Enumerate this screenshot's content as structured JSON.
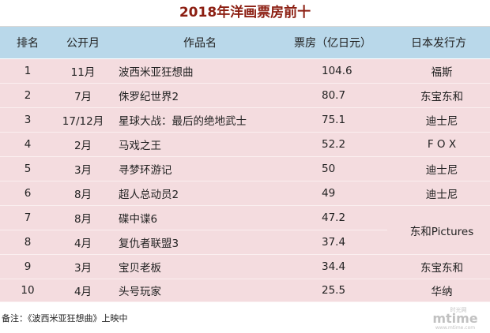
{
  "title": "2018年洋画票房前十",
  "columns": {
    "rank": "排名",
    "month": "公开月",
    "title": "作品名",
    "gross": "票房（亿日元）",
    "distributor": "日本发行方"
  },
  "rows": [
    {
      "rank": "1",
      "month": "11月",
      "title": "波西米亚狂想曲",
      "gross": "104.6",
      "distributor": "福斯"
    },
    {
      "rank": "2",
      "month": "7月",
      "title": "侏罗纪世界2",
      "gross": "80.7",
      "distributor": "东宝东和"
    },
    {
      "rank": "3",
      "month": "17/12月",
      "title": "星球大战：最后的绝地武士",
      "gross": "75.1",
      "distributor": "迪士尼"
    },
    {
      "rank": "4",
      "month": "2月",
      "title": "马戏之王",
      "gross": "52.2",
      "distributor": "F O X"
    },
    {
      "rank": "5",
      "month": "3月",
      "title": "寻梦环游记",
      "gross": "50",
      "distributor": "迪士尼"
    },
    {
      "rank": "6",
      "month": "8月",
      "title": "超人总动员2",
      "gross": "49",
      "distributor": "迪士尼"
    },
    {
      "rank": "7",
      "month": "8月",
      "title": "碟中谍6",
      "gross": "47.2",
      "distributor": "东和Pictures"
    },
    {
      "rank": "8",
      "month": "4月",
      "title": "复仇者联盟3",
      "gross": "37.4",
      "distributor": ""
    },
    {
      "rank": "9",
      "month": "3月",
      "title": "宝贝老板",
      "gross": "34.4",
      "distributor": "东宝东和"
    },
    {
      "rank": "10",
      "month": "4月",
      "title": "头号玩家",
      "gross": "25.5",
      "distributor": "华纳"
    }
  ],
  "footnote": "备注：《波西米亚狂想曲》上映中",
  "watermark": {
    "brand": "mtime",
    "brand_cn": "时光网",
    "url": "www.mtime.com"
  },
  "colors": {
    "title": "#8c1f12",
    "header_bg": "#b9d8ea",
    "row_bg": "#f4dcdf"
  }
}
